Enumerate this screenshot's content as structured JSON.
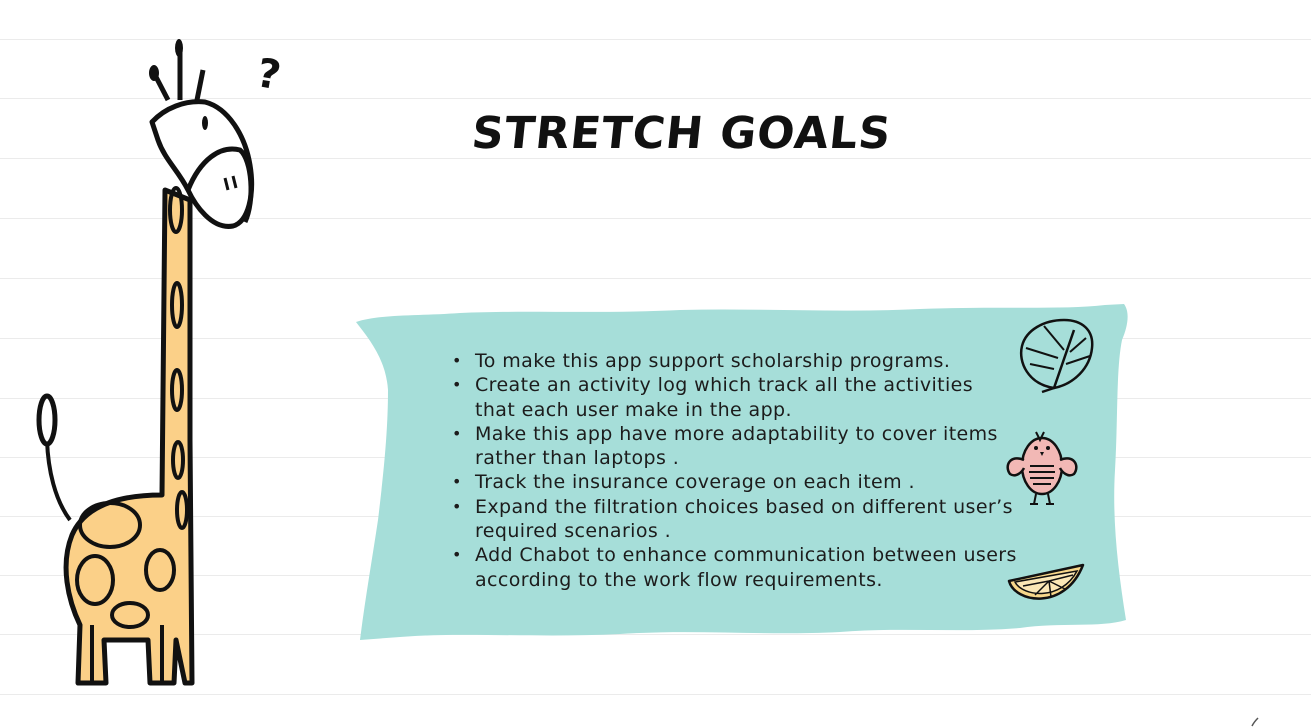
{
  "slide": {
    "title": "STRETCH GOALS",
    "question_mark": "?",
    "goals": [
      "To make this app support scholarship programs.",
      "Create an activity log which track all the activities that each user make in the app.",
      "Make this app have more adaptability to cover items rather than laptops .",
      "Track the insurance coverage on each item .",
      "Expand the filtration choices based on different user’s required scenarios .",
      "Add Chabot to enhance communication between users according to the work flow requirements."
    ]
  },
  "illustrations": {
    "giraffe": "giraffe-doodle",
    "leaf": "monstera-leaf-icon",
    "bird": "bird-icon",
    "citrus": "orange-slice-icon"
  },
  "colors": {
    "banner": "#a6ded9",
    "giraffe_body": "#fbd088",
    "bird": "#f2b8b5",
    "citrus": "#f7d78a",
    "ink": "#111111",
    "ruled_line": "#ebebeb"
  }
}
